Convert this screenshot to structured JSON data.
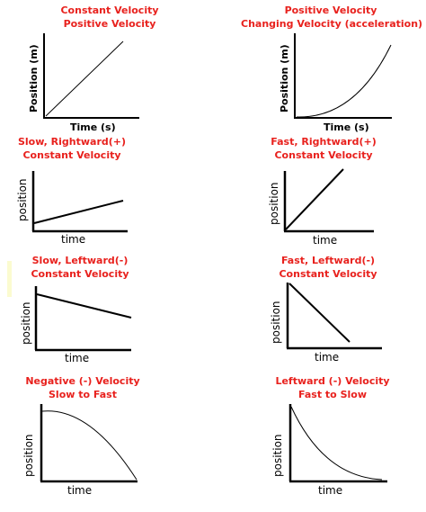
{
  "colors": {
    "title": "#e8211d",
    "axis": "#000000",
    "line": "#000000"
  },
  "panels": [
    {
      "title_line1": "Constant Velocity",
      "title_line2": "Positive Velocity",
      "xlabel": "Time (s)",
      "ylabel": "Position (m)",
      "curve": "linear-up-steep"
    },
    {
      "title_line1": "Positive Velocity",
      "title_line2": "Changing Velocity (acceleration)",
      "xlabel": "Time (s)",
      "ylabel": "Position (m)",
      "curve": "accelerating-up"
    },
    {
      "title_line1": "Slow, Rightward(+)",
      "title_line2": "Constant Velocity",
      "xlabel": "time",
      "ylabel": "position",
      "curve": "linear-up-shallow"
    },
    {
      "title_line1": "Fast, Rightward(+)",
      "title_line2": "Constant Velocity",
      "xlabel": "time",
      "ylabel": "position",
      "curve": "linear-up-steep"
    },
    {
      "title_line1": "Slow, Leftward(-)",
      "title_line2": "Constant Velocity",
      "xlabel": "time",
      "ylabel": "position",
      "curve": "linear-down-shallow"
    },
    {
      "title_line1": "Fast, Leftward(-)",
      "title_line2": "Constant Velocity",
      "xlabel": "time",
      "ylabel": "position",
      "curve": "linear-down-steep"
    },
    {
      "title_line1": "Negative (-) Velocity",
      "title_line2": "Slow to Fast",
      "xlabel": "time",
      "ylabel": "position",
      "curve": "accelerating-down"
    },
    {
      "title_line1": "Leftward (-) Velocity",
      "title_line2": "Fast to Slow",
      "xlabel": "time",
      "ylabel": "position",
      "curve": "decelerating-down"
    }
  ]
}
